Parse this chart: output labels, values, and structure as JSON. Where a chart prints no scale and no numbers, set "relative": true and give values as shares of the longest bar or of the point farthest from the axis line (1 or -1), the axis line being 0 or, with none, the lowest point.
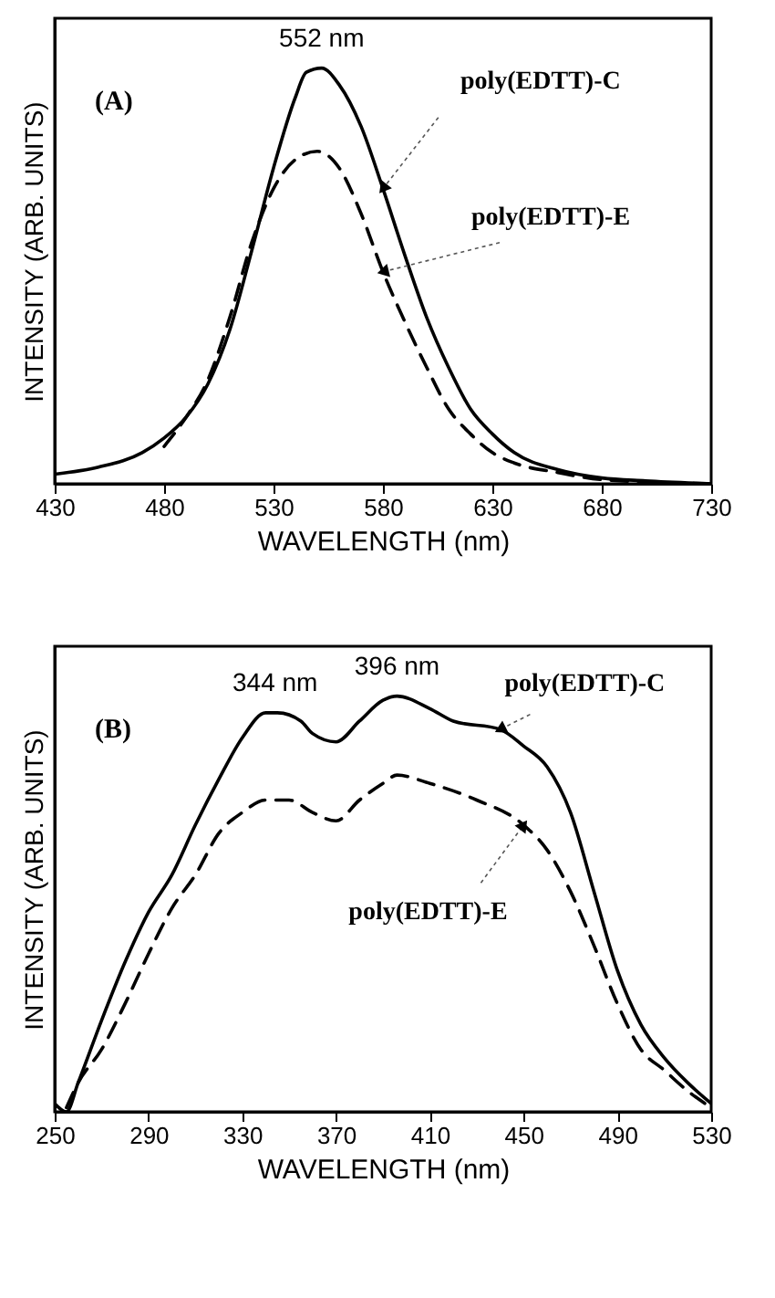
{
  "chart_data": [
    {
      "type": "line",
      "relative": true,
      "xlabel": "WAVELENGTH (nm)",
      "ylabel": "INTENSITY (ARB. UNITS)",
      "xlim": [
        430,
        730
      ],
      "xticks": [
        430,
        480,
        530,
        580,
        630,
        680,
        730
      ],
      "grid": false,
      "marker": "none",
      "annotations": [
        "(A)",
        {
          "text": "552 nm",
          "x": 552,
          "y": 1
        }
      ],
      "series": [
        {
          "name": "poly(EDTT)-C",
          "color": "#000000",
          "line_style": "solid",
          "x": [
            430,
            450,
            470,
            480,
            490,
            500,
            510,
            520,
            530,
            540,
            545,
            552,
            560,
            570,
            580,
            590,
            600,
            610,
            620,
            630,
            640,
            660,
            680,
            700,
            730
          ],
          "values": [
            0.023,
            0.04,
            0.075,
            0.11,
            0.16,
            0.24,
            0.37,
            0.56,
            0.76,
            0.93,
            0.99,
            1,
            0.96,
            0.86,
            0.71,
            0.55,
            0.4,
            0.28,
            0.18,
            0.12,
            0.075,
            0.034,
            0.014,
            0.007,
            0
          ]
        },
        {
          "name": "poly(EDTT)-E",
          "color": "#000000",
          "line_style": "dashed",
          "x": [
            480,
            490,
            500,
            510,
            520,
            530,
            540,
            550,
            560,
            570,
            580,
            590,
            600,
            610,
            620,
            630,
            640,
            660,
            680,
            730
          ],
          "values": [
            0.09,
            0.16,
            0.25,
            0.4,
            0.58,
            0.71,
            0.78,
            0.8,
            0.76,
            0.65,
            0.51,
            0.39,
            0.28,
            0.18,
            0.12,
            0.075,
            0.05,
            0.027,
            0.01,
            0
          ]
        }
      ]
    },
    {
      "type": "line",
      "relative": true,
      "xlabel": "WAVELENGTH (nm)",
      "ylabel": "INTENSITY (ARB. UNITS)",
      "xlim": [
        250,
        530
      ],
      "xticks": [
        250,
        290,
        330,
        370,
        410,
        450,
        490,
        530
      ],
      "grid": false,
      "marker": "none",
      "annotations": [
        "(B)",
        {
          "text": "344 nm",
          "x": 344,
          "y": 0.96
        },
        {
          "text": "396 nm",
          "x": 396,
          "y": 1
        }
      ],
      "series": [
        {
          "name": "poly(EDTT)-C",
          "color": "#000000",
          "line_style": "solid",
          "x": [
            250,
            255,
            260,
            270,
            280,
            290,
            300,
            310,
            320,
            330,
            340,
            345,
            355,
            360,
            370,
            380,
            390,
            396,
            410,
            420,
            440,
            450,
            460,
            470,
            480,
            490,
            500,
            510,
            520,
            530
          ],
          "values": [
            0.02,
            0,
            0.07,
            0.22,
            0.36,
            0.48,
            0.57,
            0.69,
            0.8,
            0.9,
            0.96,
            0.96,
            0.94,
            0.91,
            0.89,
            0.94,
            0.99,
            1,
            0.97,
            0.94,
            0.92,
            0.88,
            0.83,
            0.72,
            0.53,
            0.34,
            0.21,
            0.13,
            0.07,
            0.02
          ]
        },
        {
          "name": "poly(EDTT)-E",
          "color": "#000000",
          "line_style": "dashed",
          "x": [
            255,
            260,
            270,
            280,
            290,
            300,
            310,
            320,
            330,
            340,
            350,
            360,
            370,
            380,
            390,
            396,
            410,
            430,
            450,
            460,
            470,
            480,
            490,
            500,
            510,
            520,
            530
          ],
          "values": [
            0.01,
            0.07,
            0.15,
            0.26,
            0.38,
            0.49,
            0.57,
            0.67,
            0.72,
            0.75,
            0.75,
            0.72,
            0.7,
            0.75,
            0.79,
            0.81,
            0.79,
            0.75,
            0.69,
            0.63,
            0.53,
            0.4,
            0.26,
            0.15,
            0.1,
            0.05,
            0.01
          ]
        }
      ]
    }
  ]
}
